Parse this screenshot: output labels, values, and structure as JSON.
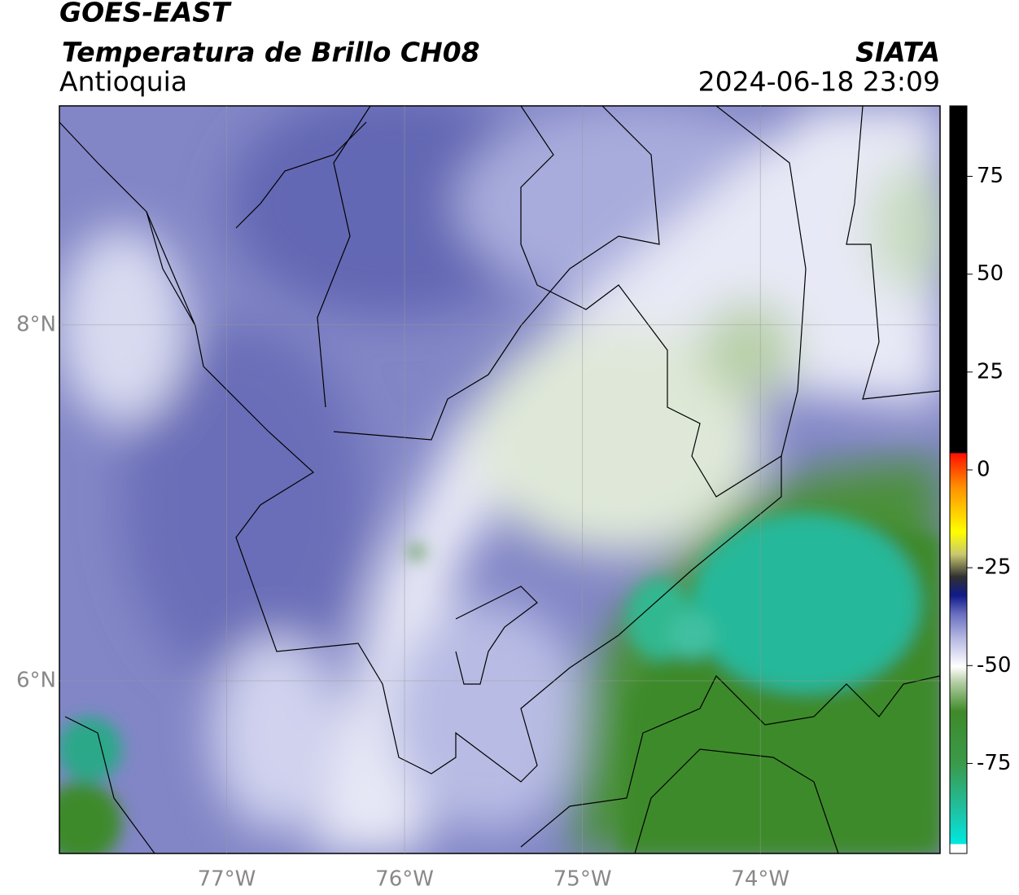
{
  "header": {
    "title": "GOES-EAST",
    "subtitle": "Temperatura de Brillo CH08",
    "region": "Antioquia",
    "source": "SIATA",
    "timestamp": "2024-06-18 23:09"
  },
  "map": {
    "xlim": [
      -77.94,
      -72.99
    ],
    "ylim": [
      5.03,
      9.23
    ],
    "xticks": [
      {
        "value": -77,
        "label": "77°W"
      },
      {
        "value": -76,
        "label": "76°W"
      },
      {
        "value": -75,
        "label": "75°W"
      },
      {
        "value": -74,
        "label": "74°W"
      }
    ],
    "yticks": [
      {
        "value": 8,
        "label": "8°N"
      },
      {
        "value": 6,
        "label": "6°N"
      }
    ],
    "grid": true
  },
  "colorbar": {
    "range": [
      -98,
      93
    ],
    "ticks": [
      75,
      50,
      25,
      0,
      -25,
      -50,
      -75
    ]
  }
}
